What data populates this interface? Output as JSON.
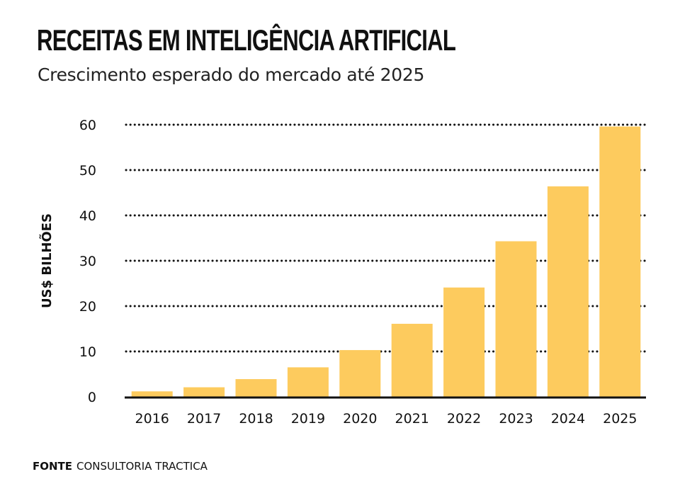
{
  "chart_data": {
    "type": "bar",
    "title": "RECEITAS EM INTELIGÊNCIA ARTIFICIAL",
    "subtitle": "Crescimento esperado do mercado até 2025",
    "xlabel": "",
    "ylabel": "US$ BILHÕES",
    "categories": [
      "2016",
      "2017",
      "2018",
      "2019",
      "2020",
      "2021",
      "2022",
      "2023",
      "2024",
      "2025"
    ],
    "values": [
      1.2,
      2.1,
      3.9,
      6.5,
      10.3,
      16.1,
      24.1,
      34.3,
      46.4,
      59.6
    ],
    "ylim": [
      0,
      60
    ],
    "yticks": [
      0,
      10,
      20,
      30,
      40,
      50,
      60
    ],
    "grid": true,
    "colors": {
      "bar": "#FDCB5E",
      "grid": "#111111",
      "axis": "#111111",
      "text": "#111111"
    }
  },
  "source": {
    "label": "FONTE",
    "text": "CONSULTORIA TRACTICA"
  }
}
